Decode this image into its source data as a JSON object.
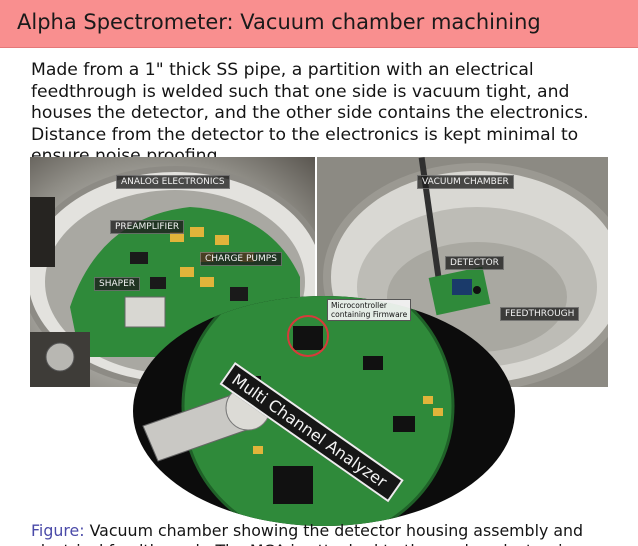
{
  "slide": {
    "title": "Alpha Spectrometer: Vacuum chamber machining",
    "body": "Made from a 1\" thick SS pipe, a partition with an electrical feedthrough is welded such that one side is vacuum tight, and houses the detector, and the other side contains the electronics. Distance from the detector to the electronics is kept minimal to ensure noise proofing."
  },
  "figure": {
    "labels": {
      "analog_electronics": "ANALOG ELECTRONICS",
      "preamplifier": "PREAMPLIFIER",
      "charge_pumps": "CHARGE PUMPS",
      "shaper": "SHAPER",
      "vacuum_chamber": "VACUUM CHAMBER",
      "detector": "DETECTOR",
      "feedthrough": "FEEDTHROUGH",
      "microcontroller_line1": "Microcontroller",
      "microcontroller_line2": "containing Firmware",
      "mca": "Multi Channel Analyzer"
    },
    "caption_label": "Figure:",
    "caption_text": "Vacuum chamber showing the detector housing assembly and electrical feedthrough. The MCA is attached to the analog electronics."
  },
  "colors": {
    "title_bar": "#f98f8f",
    "figure_label": "#4a4aa8",
    "pcb_green": "#2f8a3a"
  }
}
